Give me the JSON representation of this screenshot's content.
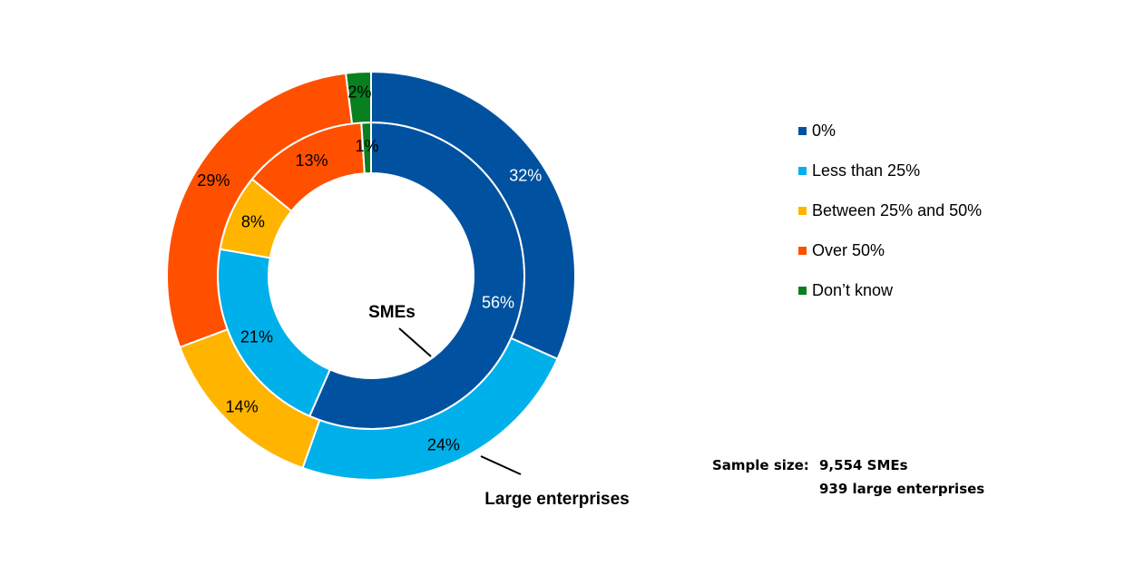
{
  "chart_data": {
    "type": "pie",
    "subtype": "donut",
    "categories": [
      "0%",
      "Less than 25%",
      "Between 25% and 50%",
      "Over 50%",
      "Don’t know"
    ],
    "colors": [
      "#0052A0",
      "#00B0EA",
      "#FFB400",
      "#FF5000",
      "#088020"
    ],
    "series": [
      {
        "name": "SMEs",
        "ring": "inner",
        "values": [
          56,
          21,
          8,
          13,
          1
        ],
        "labels": [
          "56%",
          "21%",
          "8%",
          "13%",
          "1%"
        ],
        "label_colors": [
          "#ffffff",
          "#000000",
          "#000000",
          "#000000",
          "#000000"
        ]
      },
      {
        "name": "Large enterprises",
        "ring": "outer",
        "values": [
          32,
          24,
          14,
          29,
          2
        ],
        "labels": [
          "32%",
          "24%",
          "14%",
          "29%",
          "2%"
        ],
        "label_colors": [
          "#ffffff",
          "#000000",
          "#000000",
          "#000000",
          "#000000"
        ]
      }
    ],
    "legend_position": "right",
    "title": ""
  },
  "ring_labels": {
    "inner": "SMEs",
    "outer": "Large enterprises"
  },
  "legend": [
    {
      "label": "0%",
      "color": "#0052A0"
    },
    {
      "label": "Less than 25%",
      "color": "#00B0EA"
    },
    {
      "label": "Between 25% and 50%",
      "color": "#FFB400"
    },
    {
      "label": "Over 50%",
      "color": "#FF5000"
    },
    {
      "label": "Don’t know",
      "color": "#088020"
    }
  ],
  "sample": {
    "key": "Sample size:",
    "smes": "9,554 SMEs",
    "large": "939 large enterprises"
  }
}
